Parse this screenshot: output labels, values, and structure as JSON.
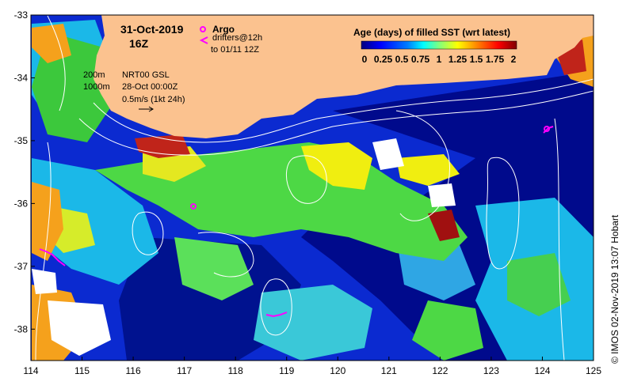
{
  "figure": {
    "date": "31-Oct-2019",
    "hour": "16Z",
    "credit": "© IMOS 02-Nov-2019 13:07 Hobart"
  },
  "legend": {
    "argo_label": "Argo",
    "drifters_label": "drifters@12h",
    "drifters_to": "to 01/11 12Z",
    "isobath_200": "200m",
    "isobath_1000": "1000m",
    "current_source": "NRT00 GSL",
    "current_date": "28-Oct 00:00Z",
    "current_scale": "0.5m/s (1kt 24h)"
  },
  "colorbar": {
    "title": "Age (days) of filled SST (wrt latest)",
    "ticks": [
      "0",
      "0.25",
      "0.5",
      "0.75",
      "1",
      "1.25",
      "1.5",
      "1.75",
      "2"
    ],
    "colors": [
      "#00007f",
      "#0000ff",
      "#007fff",
      "#00ffff",
      "#7fff7f",
      "#ffff00",
      "#ff7f00",
      "#ff0000",
      "#7f0000"
    ]
  },
  "axes": {
    "x_ticks": [
      "114",
      "115",
      "116",
      "117",
      "118",
      "119",
      "120",
      "121",
      "122",
      "123",
      "124",
      "125"
    ],
    "y_ticks": [
      "-33",
      "-34",
      "-35",
      "-36",
      "-37",
      "-38"
    ],
    "lon_range": [
      114,
      125
    ],
    "lat_range": [
      -38.5,
      -33
    ]
  },
  "colors": {
    "land": "#fbc28f",
    "ocean_deep": "#000a8c",
    "ocean": "#0b2ad0",
    "cyan": "#1bb8e8",
    "green": "#4dd845",
    "yellow": "#f0ee10",
    "orange": "#f5a11c",
    "red": "#c0241a",
    "argo": "#ff00ff"
  }
}
